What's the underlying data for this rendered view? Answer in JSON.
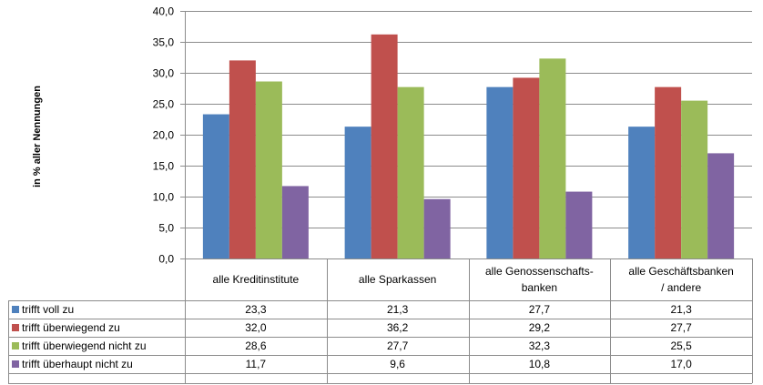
{
  "chart_data": {
    "type": "bar",
    "ylabel": "in % aller Nennungen",
    "ylim": [
      0,
      40
    ],
    "y_ticks": [
      "0,0",
      "5,0",
      "10,0",
      "15,0",
      "20,0",
      "25,0",
      "30,0",
      "35,0",
      "40,0"
    ],
    "grid": true,
    "categories": [
      [
        "alle Kreditinstitute"
      ],
      [
        "alle Sparkassen"
      ],
      [
        "alle Genossenschafts-",
        "banken"
      ],
      [
        "alle Geschäftsbanken",
        "/ andere"
      ]
    ],
    "series": [
      {
        "name": "trifft voll zu",
        "color": "#4F81BD",
        "values": [
          23.3,
          21.3,
          27.7,
          21.3
        ],
        "labels": [
          "23,3",
          "21,3",
          "27,7",
          "21,3"
        ]
      },
      {
        "name": "trifft überwiegend zu",
        "color": "#C0504D",
        "values": [
          32.0,
          36.2,
          29.2,
          27.7
        ],
        "labels": [
          "32,0",
          "36,2",
          "29,2",
          "27,7"
        ]
      },
      {
        "name": "trifft überwiegend nicht zu",
        "color": "#9BBB59",
        "values": [
          28.6,
          27.7,
          32.3,
          25.5
        ],
        "labels": [
          "28,6",
          "27,7",
          "32,3",
          "25,5"
        ]
      },
      {
        "name": "trifft überhaupt nicht zu",
        "color": "#8064A2",
        "values": [
          11.7,
          9.6,
          10.8,
          17.0
        ],
        "labels": [
          "11,7",
          "9,6",
          "10,8",
          "17,0"
        ]
      }
    ],
    "legend_placement": "data-table"
  }
}
